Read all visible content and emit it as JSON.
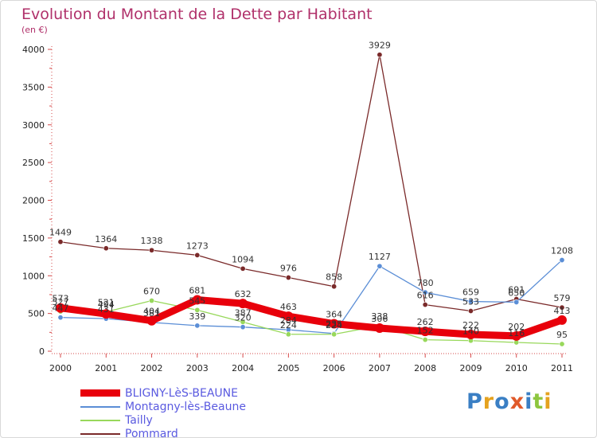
{
  "title": "Evolution du Montant de la Dette par Habitant",
  "subtitle": "(en €)",
  "logo": {
    "text": "Proxiti",
    "colors": [
      "#3a7fc4",
      "#e5a21e",
      "#3a7fc4",
      "#e05a2a",
      "#3a7fc4",
      "#8dc63f",
      "#e5a21e"
    ]
  },
  "chart_data": {
    "type": "line",
    "x": [
      "2000",
      "2001",
      "2002",
      "2003",
      "2004",
      "2005",
      "2006",
      "2007",
      "2008",
      "2009",
      "2010",
      "2011"
    ],
    "ylim": [
      0,
      4000
    ],
    "yticks": [
      0,
      500,
      1000,
      1500,
      2000,
      2500,
      3000,
      3500,
      4000
    ],
    "grid": false,
    "legend_position": "bottom-left",
    "series": [
      {
        "name": "BLIGNY-LèS-BEAUNE",
        "color": "#e8000b",
        "width": 9,
        "values": [
          573,
          494,
          404,
          681,
          632,
          463,
          364,
          306,
          262,
          222,
          202,
          413
        ],
        "labels": [
          "573",
          "494",
          "404",
          "681",
          "632",
          "463",
          "364",
          "306",
          "262",
          "222",
          "202",
          "413"
        ]
      },
      {
        "name": "Montagny-lès-Beaune",
        "color": "#5b8ed6",
        "width": 1.3,
        "values": [
          447,
          431,
          381,
          339,
          320,
          284,
          235,
          1127,
          780,
          659,
          650,
          1208
        ],
        "labels": [
          "447",
          "431",
          "381",
          "339",
          "320",
          "284",
          "235",
          "1127",
          "780",
          "659",
          "650",
          "1208"
        ]
      },
      {
        "name": "Tailly",
        "color": "#98d85b",
        "width": 1.3,
        "values": [
          527,
          521,
          670,
          545,
          387,
          224,
          224,
          338,
          152,
          140,
          116,
          95
        ],
        "labels": [
          "527",
          "521",
          "670",
          "545",
          "387",
          "224",
          "224",
          "338",
          "152",
          "140",
          "116",
          "95"
        ]
      },
      {
        "name": "Pommard",
        "color": "#7a2a2a",
        "width": 1.3,
        "values": [
          1449,
          1364,
          1338,
          1273,
          1094,
          976,
          858,
          3929,
          616,
          533,
          691,
          579
        ],
        "labels": [
          "1449",
          "1364",
          "1338",
          "1273",
          "1094",
          "976",
          "858",
          "3929",
          "616",
          "533",
          "691",
          "579"
        ]
      }
    ]
  }
}
